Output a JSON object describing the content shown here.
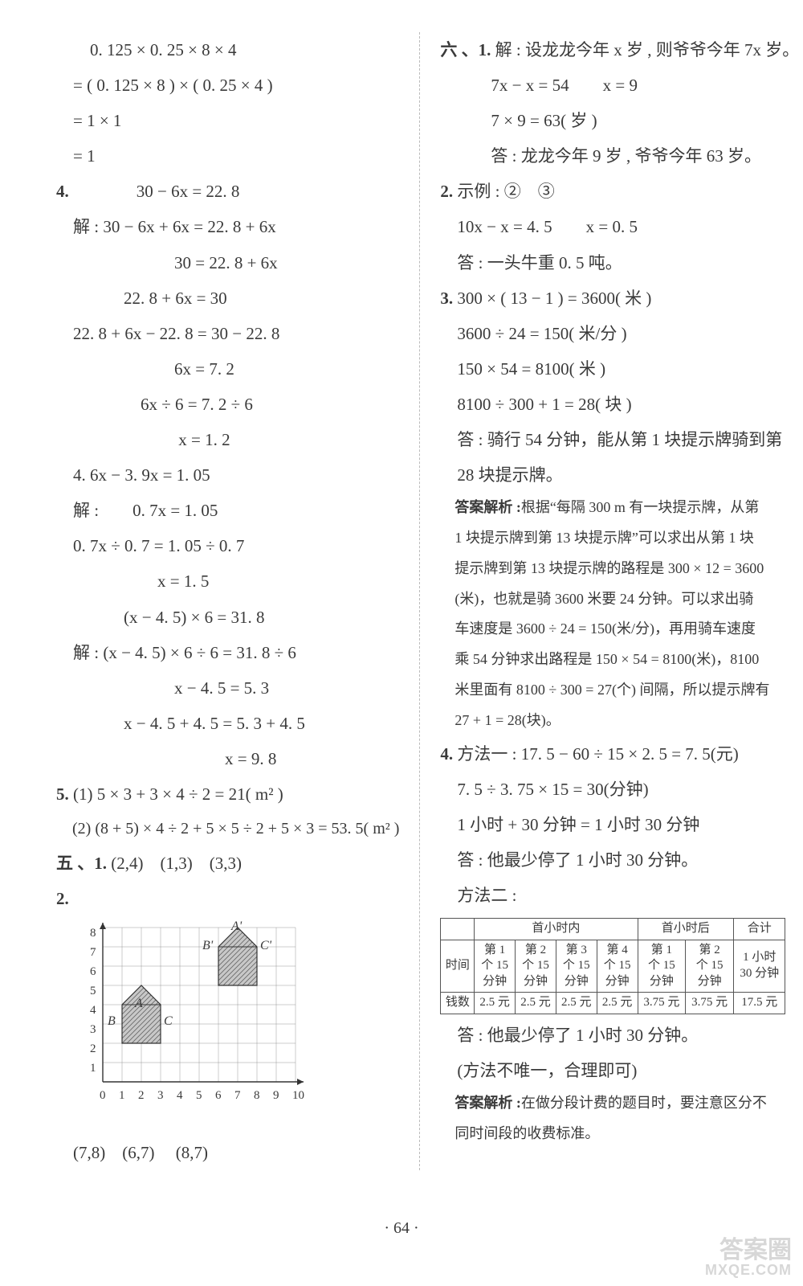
{
  "left": {
    "l1": "　　0. 125 × 0. 25 × 8 × 4",
    "l2": "　= ( 0. 125 × 8 ) × ( 0. 25 × 4 )",
    "l3": "　= 1 × 1",
    "l4": "　= 1",
    "q4_label": "4.",
    "q4_1": "　　　　30 − 6x = 22. 8",
    "q4_2": "　解 : 30 − 6x + 6x = 22. 8 + 6x",
    "q4_3": "　　　　　　　30 = 22. 8 + 6x",
    "q4_4": "　　　　22. 8 + 6x = 30",
    "q4_5": "　22. 8 + 6x − 22. 8 = 30 − 22. 8",
    "q4_6": "　　　　　　　6x = 7. 2",
    "q4_7": "　　　　　6x ÷ 6 = 7. 2 ÷ 6",
    "q4_8": "　　　　　　　 x = 1. 2",
    "e2_1": "　4. 6x − 3. 9x = 1. 05",
    "e2_2": "　解 :　　0. 7x = 1. 05",
    "e2_3": "　0. 7x ÷ 0. 7 = 1. 05 ÷ 0. 7",
    "e2_4": "　　　　　　x = 1. 5",
    "e3_1": "　　　　(x − 4. 5) × 6 = 31. 8",
    "e3_2": "　解 : (x − 4. 5) × 6 ÷ 6 = 31. 8 ÷ 6",
    "e3_3": "　　　　　　　x − 4. 5 = 5. 3",
    "e3_4": "　　　　x − 4. 5 + 4. 5 = 5. 3 + 4. 5",
    "e3_5": "　　　　　　　　　　x = 9. 8",
    "q5_label": "5.",
    "q5_1": "(1) 5 × 3 + 3 × 4 ÷ 2 = 21( m² )",
    "q5_2": "　(2) (8 + 5) × 4 ÷ 2 + 5 × 5 ÷ 2 + 5 × 3 = 53. 5( m² )",
    "sec5_label": "五 、1.",
    "sec5_1": "(2,4)　(1,3)　(3,3)",
    "sec5_q2": "2.",
    "coords": "(7,8)　(6,7) 　(8,7)",
    "chart": {
      "x_ticks": [
        "0",
        "1",
        "2",
        "3",
        "4",
        "5",
        "6",
        "7",
        "8",
        "9",
        "10"
      ],
      "y_ticks": [
        "1",
        "2",
        "3",
        "4",
        "5",
        "6",
        "7",
        "8"
      ],
      "unit": 24,
      "grid_color": "#999",
      "house1_fill": "#b8b8b8",
      "house2_fill": "#b8b8b8",
      "labels": {
        "A": "A",
        "B": "B",
        "C": "C",
        "Ap": "A'",
        "Bp": "B'",
        "Cp": "C'"
      },
      "house1": {
        "apex": [
          2,
          4
        ],
        "bl": [
          1,
          3
        ],
        "br": [
          3,
          3
        ],
        "base_y": 1
      },
      "house2": {
        "apex": [
          7,
          8
        ],
        "bl": [
          6,
          7
        ],
        "br": [
          8,
          7
        ],
        "base_y": 5
      }
    }
  },
  "right": {
    "sec6": "六 、1.",
    "s6_1": "解 : 设龙龙今年 x 岁 , 则爷爷今年 7x 岁。",
    "s6_2": "　　　7x − x = 54　　x = 9",
    "s6_3": "　　　7 × 9 = 63( 岁 )",
    "s6_4": "　　　答 : 龙龙今年 9 岁 , 爷爷今年 63 岁。",
    "q2_l": "2.",
    "q2_1": "示例 : ②　③",
    "q2_2": "　10x − x = 4. 5　　x = 0. 5",
    "q2_3": "　答 : 一头牛重 0. 5 吨。",
    "q3_l": "3.",
    "q3_1": "300 × ( 13 − 1 ) = 3600( 米 )",
    "q3_2": "　3600 ÷ 24 = 150( 米/分 )",
    "q3_3": "　150 × 54 = 8100( 米 )",
    "q3_4": "　8100 ÷ 300 + 1 = 28( 块 )",
    "q3_5": "　答 : 骑行 54 分钟，能从第 1 块提示牌骑到第",
    "q3_5b": "　28 块提示牌。",
    "q3_ans_l": "　答案解析 :",
    "q3_a1": "根据“每隔 300 m 有一块提示牌，从第",
    "q3_a2": "　1 块提示牌到第 13 块提示牌”可以求出从第 1 块",
    "q3_a3": "　提示牌到第 13 块提示牌的路程是 300 × 12 = 3600",
    "q3_a4": "　(米)，也就是骑 3600 米要 24 分钟。可以求出骑",
    "q3_a5": "　车速度是 3600 ÷ 24 = 150(米/分)，再用骑车速度",
    "q3_a6": "　乘 54 分钟求出路程是 150 × 54 = 8100(米)，8100",
    "q3_a7": "　米里面有 8100 ÷ 300 = 27(个) 间隔，所以提示牌有",
    "q3_a8": "　27 + 1 = 28(块)。",
    "q4_l": "4.",
    "q4_1": "方法一 : 17. 5 − 60 ÷ 15 × 2. 5 = 7. 5(元)",
    "q4_2": "　7. 5 ÷ 3. 75 × 15 = 30(分钟)",
    "q4_3": "　1 小时 + 30 分钟 = 1 小时 30 分钟",
    "q4_4": "　答 : 他最少停了 1 小时 30 分钟。",
    "q4_5": "　方法二 :",
    "table": {
      "header_group1": "首小时内",
      "header_group2": "首小时后",
      "header_total": "合计",
      "row_label": "时间",
      "slots": [
        "第 1\n个 15\n分钟",
        "第 2\n个 15\n分钟",
        "第 3\n个 15\n分钟",
        "第 4\n个 15\n分钟",
        "第 1\n个 15\n分钟",
        "第 2\n个 15\n分钟"
      ],
      "total_time": "1 小时\n30 分钟",
      "money_label": "钱数",
      "money": [
        "2.5 元",
        "2.5 元",
        "2.5 元",
        "2.5 元",
        "3.75 元",
        "3.75 元",
        "17.5 元"
      ]
    },
    "q4_6": "　答 : 他最少停了 1 小时 30 分钟。",
    "q4_7": "　(方法不唯一，合理即可)",
    "q4_ans_l": "　答案解析 :",
    "q4_a1": "在做分段计费的题目时，要注意区分不",
    "q4_a2": "　同时间段的收费标准。"
  },
  "footer": "· 64 ·",
  "watermark": {
    "main": "答案圈",
    "sub": "MXQE.COM"
  }
}
